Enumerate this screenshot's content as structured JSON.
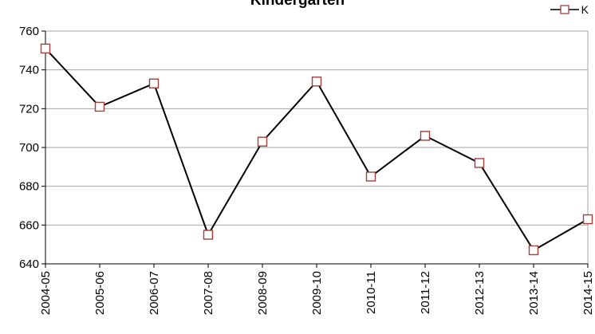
{
  "chart_data": {
    "type": "line",
    "title": "Kindergarten",
    "categories": [
      "2004-05",
      "2005-06",
      "2006-07",
      "2007-08",
      "2008-09",
      "2009-10",
      "2010-11",
      "2011-12",
      "2012-13",
      "2013-14",
      "2014-15"
    ],
    "series": [
      {
        "name": "K",
        "values": [
          751,
          721,
          733,
          655,
          703,
          734,
          685,
          706,
          692,
          647,
          663
        ]
      }
    ],
    "ylim": [
      640,
      760
    ],
    "yticks": [
      640,
      660,
      680,
      700,
      720,
      740,
      760
    ],
    "grid": true,
    "legend_position": "top-right",
    "colors": {
      "line": "#000000",
      "marker_stroke": "#a0403a",
      "marker_fill": "#ffffff",
      "grid": "#a6a6a6"
    }
  }
}
